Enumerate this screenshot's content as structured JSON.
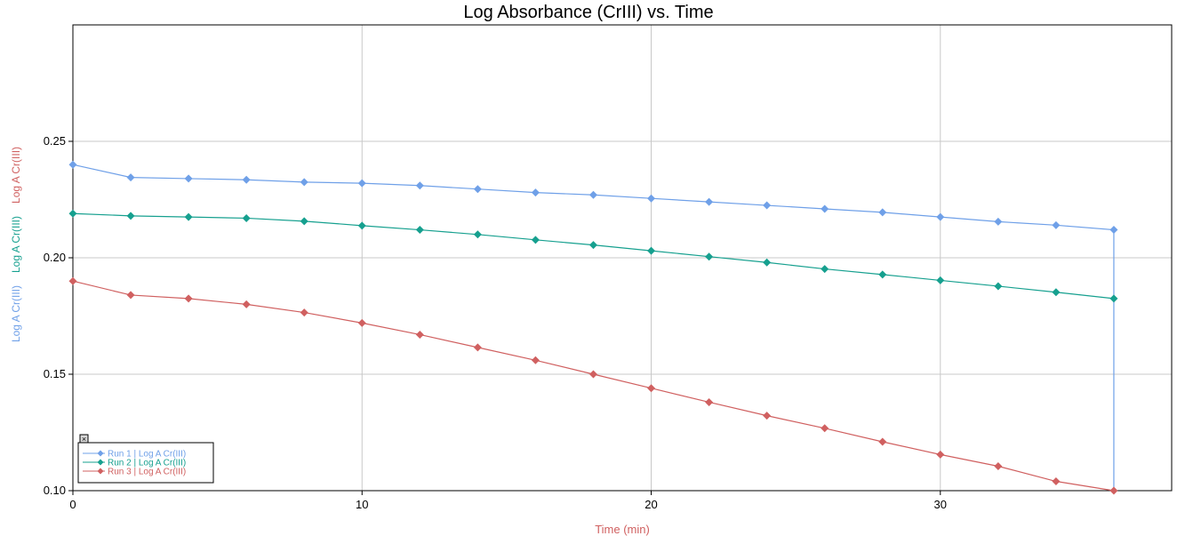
{
  "chart_data": {
    "type": "line",
    "title": "Log Absorbance (CrIII) vs. Time",
    "xlabel": "Time (min)",
    "ylabels": [
      {
        "text": "Log A Cr(III)",
        "color": "#6fa0e8"
      },
      {
        "text": "Log A  Cr(III)",
        "color": "#16a08f"
      },
      {
        "text": "Log A  Cr(III)",
        "color": "#d06060"
      }
    ],
    "xlim": [
      0,
      38
    ],
    "ylim": [
      0.1,
      0.3
    ],
    "xticks": [
      0,
      10,
      20,
      30
    ],
    "yticks": [
      0.1,
      0.15,
      0.2,
      0.25
    ],
    "xtick_labels": [
      "0",
      "10",
      "20",
      "30"
    ],
    "ytick_labels": [
      "0.10",
      "0.15",
      "0.20",
      "0.25"
    ],
    "grid": true,
    "legend": "bottom-left",
    "legend_close": "×",
    "x": [
      0,
      2,
      4,
      6,
      8,
      10,
      12,
      14,
      16,
      18,
      20,
      22,
      24,
      26,
      28,
      30,
      32,
      34,
      36
    ],
    "series": [
      {
        "name": "Run 1 | Log A Cr(III)",
        "color": "#6fa0e8",
        "values": [
          0.24,
          0.2345,
          0.234,
          0.2335,
          0.2325,
          0.232,
          0.231,
          0.2295,
          0.228,
          0.227,
          0.2255,
          0.224,
          0.2225,
          0.221,
          0.2195,
          0.2175,
          0.2155,
          0.214,
          0.212
        ],
        "drop_to": 0.1
      },
      {
        "name": "Run 2 | Log A  Cr(III)",
        "color": "#16a08f",
        "values": [
          0.219,
          0.218,
          0.2175,
          0.217,
          0.2157,
          0.2138,
          0.212,
          0.21,
          0.2077,
          0.2055,
          0.203,
          0.2005,
          0.198,
          0.1952,
          0.1928,
          0.1903,
          0.1878,
          0.1852,
          0.1825
        ]
      },
      {
        "name": "Run 3 | Log A  Cr(III)",
        "color": "#d06060",
        "values": [
          0.19,
          0.184,
          0.1825,
          0.18,
          0.1765,
          0.172,
          0.167,
          0.1615,
          0.156,
          0.15,
          0.144,
          0.138,
          0.1322,
          0.1268,
          0.121,
          0.1155,
          0.1105,
          0.104,
          0.1
        ]
      }
    ]
  }
}
